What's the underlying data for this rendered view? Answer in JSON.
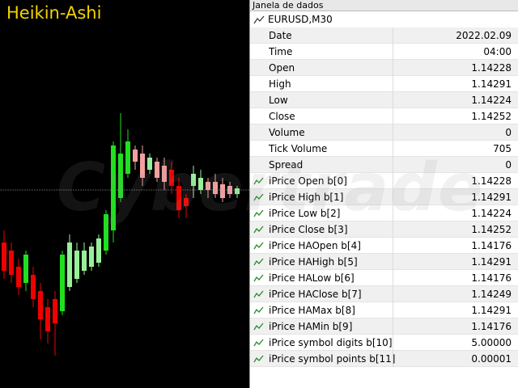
{
  "chart_title": "Heikin-Ashi",
  "watermark": "Cybertrade",
  "data_window": {
    "title": "Janela de dados",
    "symbol": "EURUSD,M30",
    "rows": [
      {
        "label": "Date",
        "value": "2022.02.09"
      },
      {
        "label": "Time",
        "value": "04:00"
      },
      {
        "label": "Open",
        "value": "1.14228"
      },
      {
        "label": "High",
        "value": "1.14291"
      },
      {
        "label": "Low",
        "value": "1.14224"
      },
      {
        "label": "Close",
        "value": "1.14252"
      },
      {
        "label": "Volume",
        "value": "0"
      },
      {
        "label": "Tick Volume",
        "value": "705"
      },
      {
        "label": "Spread",
        "value": "0"
      },
      {
        "label": "iPrice Open b[0]",
        "value": "1.14228"
      },
      {
        "label": "iPrice High b[1]",
        "value": "1.14291"
      },
      {
        "label": "iPrice Low b[2]",
        "value": "1.14224"
      },
      {
        "label": "iPrice Close b[3]",
        "value": "1.14252"
      },
      {
        "label": "iPrice HAOpen b[4]",
        "value": "1.14176"
      },
      {
        "label": "iPrice HAHigh b[5]",
        "value": "1.14291"
      },
      {
        "label": "iPrice HALow b[6]",
        "value": "1.14176"
      },
      {
        "label": "iPrice HAClose b[7]",
        "value": "1.14249"
      },
      {
        "label": "iPrice HAMax b[8]",
        "value": "1.14291"
      },
      {
        "label": "iPrice HAMin b[9]",
        "value": "1.14176"
      },
      {
        "label": "iPrice symbol digits b[10]",
        "value": "5.00000"
      },
      {
        "label": "iPrice symbol points b[11]",
        "value": "0.00001"
      }
    ]
  }
}
